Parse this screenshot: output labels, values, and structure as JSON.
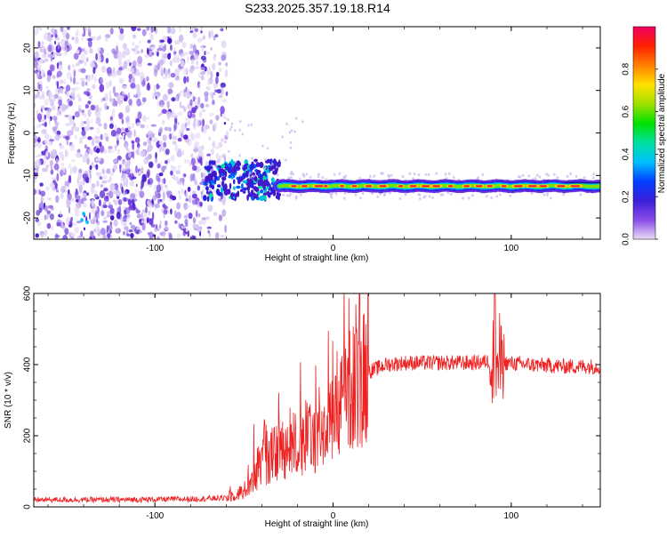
{
  "title": "S233.2025.357.19.18.R14",
  "chart_data": [
    {
      "type": "heatmap",
      "xlabel": "Height of straight line (km)",
      "ylabel": "Frequency (Hz)",
      "xlim": [
        -168,
        150
      ],
      "ylim": [
        -25,
        25
      ],
      "xticks": [
        -100,
        0,
        100
      ],
      "yticks": [
        -20,
        -10,
        0,
        10,
        20
      ],
      "xtick_labels": [
        "-100",
        "0",
        "100"
      ],
      "ytick_labels": [
        "-20",
        "-10",
        "0",
        "10",
        "20"
      ],
      "colorbar": {
        "label": "Normalized spectral amplitude",
        "range": [
          0,
          1
        ],
        "ticks": [
          "0.0",
          "0.2",
          "0.4",
          "0.6",
          "0.8"
        ],
        "colors": [
          "#e8dcf5",
          "#8a4ce8",
          "#3a1fd8",
          "#0040ff",
          "#00c0ff",
          "#00e0a0",
          "#00e000",
          "#a0e000",
          "#ffe000",
          "#ff8000",
          "#ff2000",
          "#f00060"
        ]
      },
      "features": {
        "noise_region_x": [
          -168,
          -63
        ],
        "transition_x": [
          -70,
          -30
        ],
        "carrier_line_x": [
          -30,
          150
        ],
        "carrier_frequency_hz": -12.5
      }
    },
    {
      "type": "line",
      "xlabel": "Height of straight line (km)",
      "ylabel": "SNR (10 * v/v)",
      "xlim": [
        -168,
        150
      ],
      "ylim": [
        0,
        600
      ],
      "xticks": [
        -100,
        0,
        100
      ],
      "yticks": [
        0,
        200,
        400,
        600
      ],
      "xtick_labels": [
        "-100",
        "0",
        "100"
      ],
      "ytick_labels": [
        "0",
        "200",
        "400",
        "600"
      ],
      "color": "#ee2020",
      "profile_x": [
        -168,
        -120,
        -80,
        -60,
        -50,
        -40,
        -30,
        -20,
        -10,
        0,
        10,
        20,
        30,
        40,
        60,
        80,
        88,
        90,
        92,
        95,
        110,
        130,
        150
      ],
      "profile_y": [
        20,
        20,
        22,
        25,
        45,
        110,
        160,
        180,
        200,
        240,
        330,
        380,
        400,
        405,
        405,
        405,
        410,
        420,
        400,
        405,
        400,
        395,
        395
      ]
    }
  ]
}
